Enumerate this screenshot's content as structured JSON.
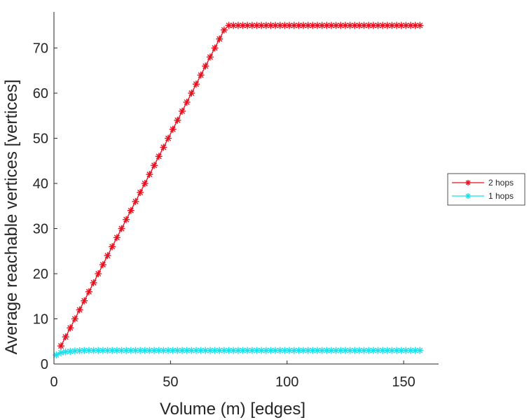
{
  "chart_data": {
    "type": "line",
    "title": "",
    "xlabel": "Volume (m) [edges]",
    "ylabel": "Average reachable vertices [vertices]",
    "xlim": [
      0,
      165
    ],
    "ylim": [
      0,
      78
    ],
    "xticks": [
      "0",
      "50",
      "100",
      "150"
    ],
    "yticks": [
      "0",
      "10",
      "20",
      "30",
      "40",
      "50",
      "60",
      "70"
    ],
    "grid": false,
    "legend_position": "right",
    "series": [
      {
        "name": "2 hops",
        "color": "#e8101e",
        "marker": "asterisk",
        "x_start": 3,
        "x_step": 2,
        "x_end": 157,
        "y_start": 4,
        "y_slope_per_edge": 1,
        "y_max": 75
      },
      {
        "name": "1 hops",
        "color": "#19e0ec",
        "marker": "asterisk",
        "x_start": 1,
        "x_step": 2,
        "x_end": 157,
        "y_points": [
          [
            1,
            2
          ],
          [
            3,
            2.5
          ],
          [
            5,
            2.7
          ],
          [
            9,
            2.9
          ],
          [
            13,
            3
          ]
        ],
        "y_plateau": 3
      }
    ]
  }
}
